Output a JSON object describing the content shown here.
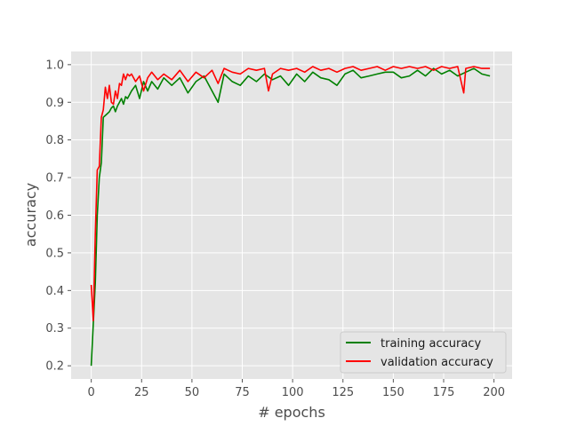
{
  "chart_data": {
    "type": "line",
    "title": "",
    "xlabel": "# epochs",
    "ylabel": "accuracy",
    "xlim": [
      -10,
      209
    ],
    "ylim": [
      0.165,
      1.035
    ],
    "xticks": [
      0,
      25,
      50,
      75,
      100,
      125,
      150,
      175,
      200
    ],
    "yticks": [
      0.2,
      0.3,
      0.4,
      0.5,
      0.6,
      0.7,
      0.8,
      0.9,
      1.0
    ],
    "xtick_labels": [
      "0",
      "25",
      "50",
      "75",
      "100",
      "125",
      "150",
      "175",
      "200"
    ],
    "ytick_labels": [
      "0.2",
      "0.3",
      "0.4",
      "0.5",
      "0.6",
      "0.7",
      "0.8",
      "0.9",
      "1.0"
    ],
    "grid": true,
    "background": "#e5e5e5",
    "legend_position": "lower-right",
    "series": [
      {
        "name": "training accuracy",
        "color": "#008000",
        "x": [
          0,
          1,
          2,
          3,
          4,
          5,
          6,
          7,
          8,
          9,
          10,
          11,
          12,
          13,
          14,
          15,
          16,
          17,
          18,
          19,
          20,
          22,
          24,
          26,
          28,
          30,
          33,
          36,
          40,
          44,
          48,
          52,
          56,
          60,
          63,
          66,
          70,
          74,
          78,
          82,
          86,
          90,
          94,
          98,
          102,
          106,
          110,
          114,
          118,
          122,
          126,
          130,
          134,
          138,
          142,
          146,
          150,
          154,
          158,
          162,
          166,
          170,
          174,
          178,
          182,
          186,
          190,
          194,
          198
        ],
        "y": [
          0.2,
          0.31,
          0.42,
          0.6,
          0.7,
          0.74,
          0.86,
          0.865,
          0.87,
          0.875,
          0.885,
          0.89,
          0.875,
          0.89,
          0.9,
          0.91,
          0.895,
          0.915,
          0.91,
          0.92,
          0.93,
          0.945,
          0.91,
          0.955,
          0.93,
          0.955,
          0.935,
          0.965,
          0.945,
          0.965,
          0.925,
          0.955,
          0.97,
          0.93,
          0.9,
          0.975,
          0.955,
          0.945,
          0.97,
          0.955,
          0.975,
          0.96,
          0.97,
          0.945,
          0.975,
          0.955,
          0.98,
          0.965,
          0.96,
          0.945,
          0.975,
          0.985,
          0.965,
          0.97,
          0.975,
          0.98,
          0.98,
          0.965,
          0.97,
          0.985,
          0.97,
          0.99,
          0.975,
          0.985,
          0.97,
          0.98,
          0.99,
          0.975,
          0.97
        ]
      },
      {
        "name": "validation accuracy",
        "color": "#ff0000",
        "x": [
          0,
          1,
          2,
          3,
          4,
          5,
          6,
          7,
          8,
          9,
          10,
          11,
          12,
          13,
          14,
          15,
          16,
          17,
          18,
          19,
          20,
          22,
          24,
          26,
          28,
          30,
          33,
          36,
          40,
          44,
          48,
          52,
          56,
          60,
          63,
          66,
          70,
          74,
          78,
          82,
          86,
          88,
          90,
          94,
          98,
          102,
          106,
          110,
          114,
          118,
          122,
          126,
          130,
          134,
          138,
          142,
          146,
          150,
          154,
          158,
          162,
          166,
          170,
          174,
          178,
          182,
          185,
          186,
          190,
          194,
          198
        ],
        "y": [
          0.415,
          0.32,
          0.55,
          0.72,
          0.73,
          0.86,
          0.88,
          0.94,
          0.91,
          0.945,
          0.9,
          0.895,
          0.93,
          0.91,
          0.95,
          0.945,
          0.975,
          0.96,
          0.975,
          0.97,
          0.975,
          0.955,
          0.97,
          0.93,
          0.965,
          0.98,
          0.96,
          0.975,
          0.96,
          0.985,
          0.955,
          0.98,
          0.965,
          0.985,
          0.95,
          0.99,
          0.98,
          0.975,
          0.99,
          0.985,
          0.99,
          0.93,
          0.975,
          0.99,
          0.985,
          0.99,
          0.98,
          0.995,
          0.985,
          0.99,
          0.98,
          0.99,
          0.995,
          0.985,
          0.99,
          0.995,
          0.985,
          0.995,
          0.99,
          0.995,
          0.99,
          0.995,
          0.985,
          0.995,
          0.99,
          0.995,
          0.925,
          0.99,
          0.995,
          0.99,
          0.99
        ]
      }
    ]
  }
}
